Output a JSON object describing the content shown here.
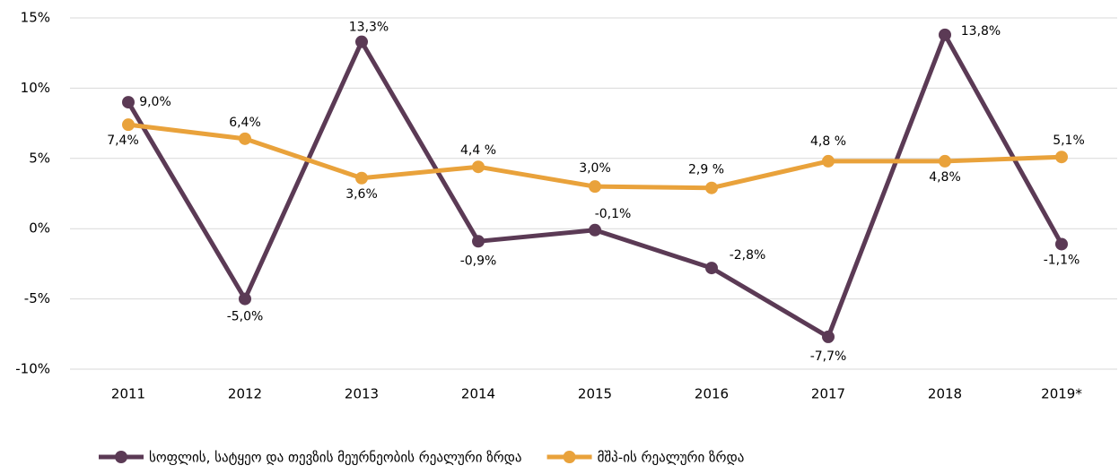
{
  "chart_data": {
    "type": "line",
    "categories": [
      "2011",
      "2012",
      "2013",
      "2014",
      "2015",
      "2016",
      "2017",
      "2018",
      "2019*"
    ],
    "series": [
      {
        "name": "სოფლის, სატყეო და თევზის მეურნეობის რეალური ზრდა",
        "color": "#5b3a55",
        "values": [
          9.0,
          -5.0,
          13.3,
          -0.9,
          -0.1,
          -2.8,
          -7.7,
          13.8,
          -1.1
        ],
        "value_labels": [
          "9,0%",
          "-5,0%",
          "13,3%",
          "-0,9%",
          "-0,1%",
          "-2,8%",
          "-7,7%",
          "13,8%",
          "-1,1%"
        ]
      },
      {
        "name": "მშპ-ის რეალური ზრდა",
        "color": "#e9a23b",
        "values": [
          7.4,
          6.4,
          3.6,
          4.4,
          3.0,
          2.9,
          4.8,
          4.8,
          5.1
        ],
        "value_labels": [
          "7,4%",
          "6,4%",
          "3,6%",
          "4,4 %",
          "3,0%",
          "2,9 %",
          "4,8 %",
          "4,8%",
          "5,1%"
        ]
      }
    ],
    "ylim": [
      -10,
      15
    ],
    "yticks": [
      {
        "value": -10,
        "label": "-10%"
      },
      {
        "value": -5,
        "label": "-5%"
      },
      {
        "value": 0,
        "label": "0%"
      },
      {
        "value": 5,
        "label": "5%"
      },
      {
        "value": 10,
        "label": "10%"
      },
      {
        "value": 15,
        "label": "15%"
      }
    ],
    "grid": true,
    "legend": "bottom"
  }
}
